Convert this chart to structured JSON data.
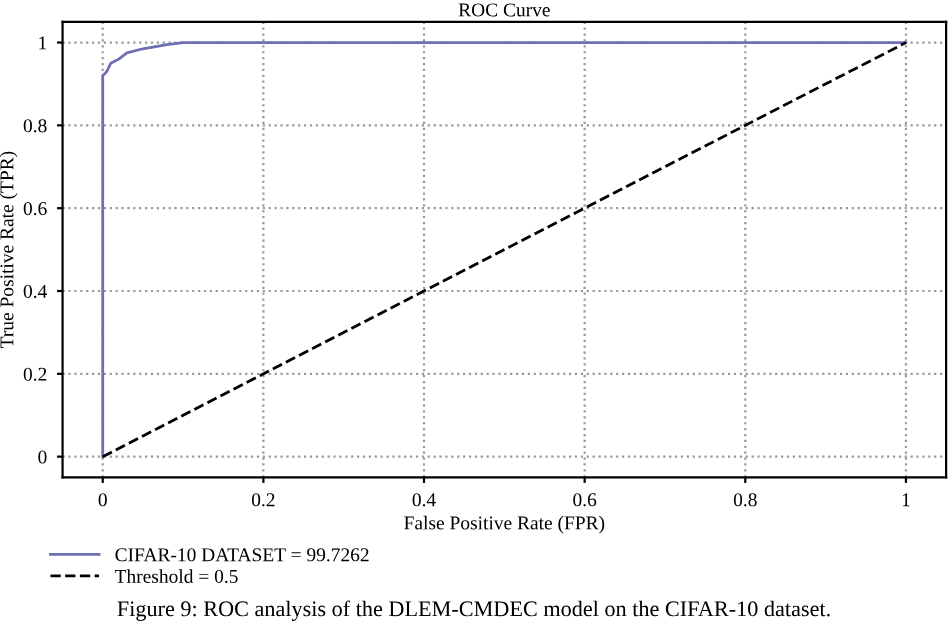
{
  "chart_data": {
    "type": "line",
    "title": "ROC Curve",
    "xlabel": "False Positive Rate (FPR)",
    "ylabel": "True Positive Rate (TPR)",
    "series": [
      {
        "name": "CIFAR-10 DATASET = 99.7262",
        "color": "#6f6fb3",
        "line_style": "solid",
        "x": [
          0,
          0,
          0.005,
          0.01,
          0.02,
          0.03,
          0.05,
          0.08,
          0.1,
          1
        ],
        "values": [
          0,
          0.92,
          0.93,
          0.95,
          0.96,
          0.975,
          0.985,
          0.995,
          1,
          1
        ]
      },
      {
        "name": "Threshold = 0.5",
        "color": "#000000",
        "line_style": "dashed",
        "x": [
          0,
          1
        ],
        "values": [
          0,
          1
        ]
      }
    ],
    "xlim": [
      -0.05,
      1.05
    ],
    "ylim": [
      -0.05,
      1.05
    ],
    "xticks": [
      0,
      0.2,
      0.4,
      0.6,
      0.8,
      1
    ],
    "yticks": [
      0,
      0.2,
      0.4,
      0.6,
      0.8,
      1
    ],
    "grid": true,
    "legend": "bottom left",
    "marker": "none",
    "annotations": [
      "Figure 9: ROC analysis of the DLEM-CMDEC model on the CIFAR-10 dataset."
    ]
  }
}
